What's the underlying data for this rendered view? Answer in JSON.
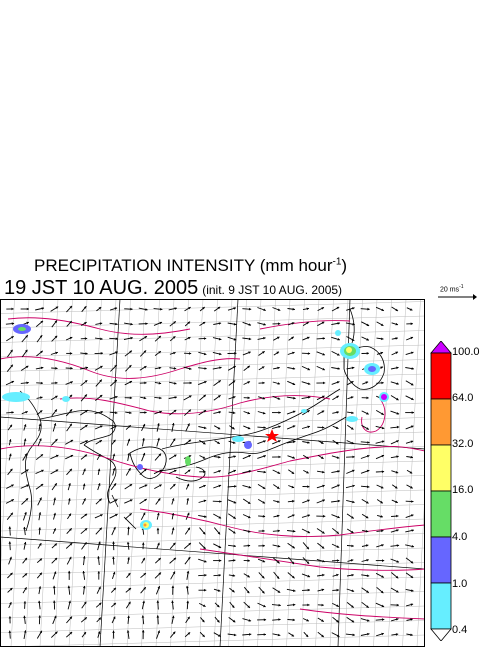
{
  "title": {
    "main": "PRECIPITATION INTENSITY (mm hour",
    "exp": "-1",
    "close": ")"
  },
  "subtitle": {
    "time": "19 JST 10 AUG. 2005",
    "init": "(init. 9 JST 10 AUG. 2005)"
  },
  "vector_scale": {
    "label": "20 ms",
    "exp": "-1"
  },
  "colorbar": {
    "levels": [
      "100.0",
      "64.0",
      "32.0",
      "16.0",
      "4.0",
      "1.0",
      "0.4"
    ],
    "colors": [
      "#cc00ff",
      "#ff0000",
      "#ff9933",
      "#ffff66",
      "#66dd66",
      "#6666ff",
      "#66eeff",
      "#ffffff"
    ]
  },
  "colors": {
    "contour": "#cc0066",
    "grid": "#bbbbbb",
    "coast": "#000000",
    "marker": "#ff0000"
  }
}
